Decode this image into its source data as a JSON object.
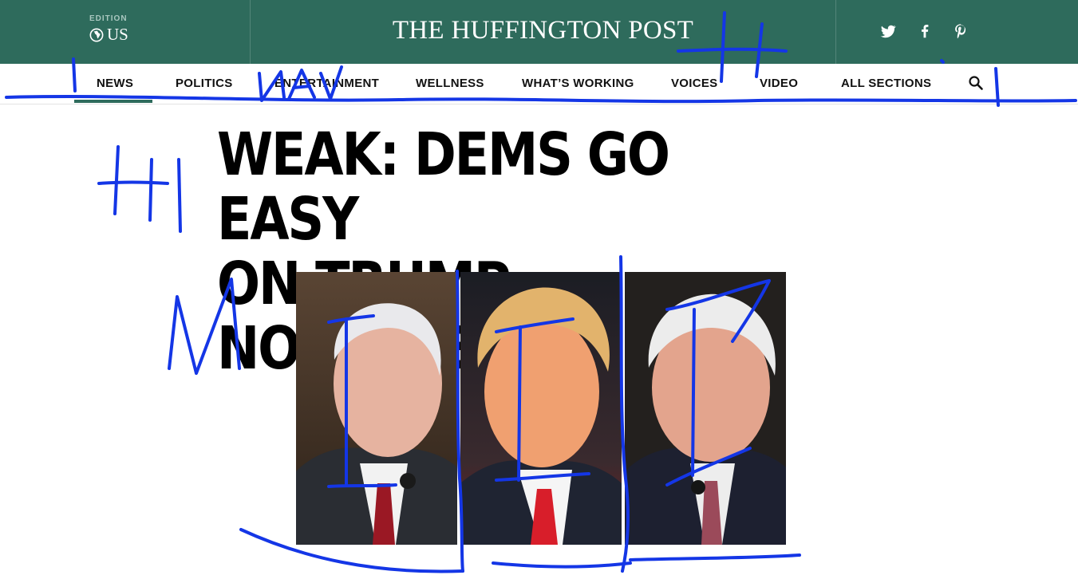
{
  "masthead": {
    "edition_label": "EDITION",
    "edition_value": "US",
    "logo": "THE HUFFINGTON POST",
    "background": "#2e6b5c",
    "social": [
      {
        "name": "twitter-icon"
      },
      {
        "name": "facebook-icon"
      },
      {
        "name": "pinterest-icon"
      }
    ]
  },
  "nav": {
    "items": [
      {
        "label": "NEWS",
        "active": true
      },
      {
        "label": "POLITICS"
      },
      {
        "label": "ENTERTAINMENT"
      },
      {
        "label": "WELLNESS"
      },
      {
        "label": "WHAT’S WORKING"
      },
      {
        "label": "VOICES"
      },
      {
        "label": "VIDEO"
      },
      {
        "label": "ALL SECTIONS"
      }
    ],
    "search_icon": "search-icon"
  },
  "headline": {
    "line1": "WEAK: DEMS GO EASY",
    "line2": "ON TRUMP NOMINEES"
  },
  "photos": [
    {
      "name": "nominee-photo-left"
    },
    {
      "name": "nominee-photo-center"
    },
    {
      "name": "nominee-photo-right"
    }
  ],
  "annotation_color": "#1436e6"
}
